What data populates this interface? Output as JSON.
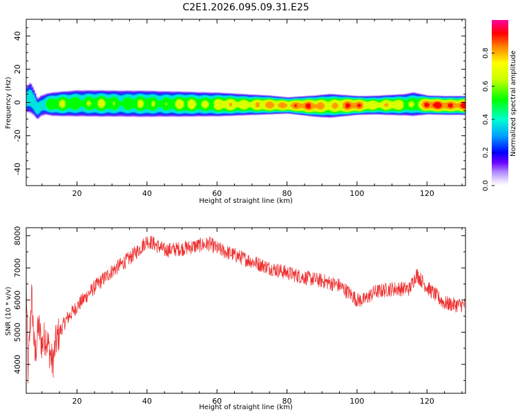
{
  "chart_data": [
    {
      "type": "heatmap",
      "title": "C2E1.2026.095.09.31.E25",
      "xlabel": "Height of straight line (km)",
      "ylabel": "Frequency (Hz)",
      "xlim": [
        5.5,
        131
      ],
      "ylim": [
        -50,
        50
      ],
      "xticks": [
        20,
        40,
        60,
        80,
        100,
        120
      ],
      "yticks": [
        -40,
        -20,
        0,
        20,
        40
      ],
      "ridge": {
        "x": [
          5.5,
          6.5,
          7.5,
          8.5,
          9.5,
          11,
          13,
          20,
          40,
          60,
          75,
          80,
          88,
          92,
          100,
          105,
          113,
          116,
          120,
          125,
          131
        ],
        "freq": [
          2,
          3,
          0,
          -4,
          -2,
          -1,
          -1,
          -0.5,
          -0.8,
          -1.2,
          -1.5,
          -1.8,
          -2.2,
          -2.0,
          -1.8,
          -1.6,
          -1.4,
          -1.0,
          -1.5,
          -1.8,
          -1.8
        ],
        "halfwidth": [
          5,
          6,
          5,
          4,
          4,
          4,
          4.5,
          5,
          5,
          4.5,
          3.5,
          3,
          4,
          4.5,
          3.5,
          3.5,
          4,
          4.5,
          3.5,
          3.5,
          3.5
        ],
        "amplitude": [
          0.45,
          0.55,
          0.5,
          0.45,
          0.5,
          0.55,
          0.6,
          0.62,
          0.6,
          0.7,
          0.8,
          0.88,
          0.85,
          0.8,
          0.88,
          0.75,
          0.7,
          0.65,
          0.9,
          0.92,
          0.92
        ]
      },
      "colorbar": {
        "label": "Normalized spectral amplitude",
        "range": [
          0,
          1
        ],
        "ticks": [
          "0.0",
          "0.2",
          "0.4",
          "0.6",
          "0.8"
        ],
        "tick_values": [
          0,
          0.2,
          0.4,
          0.6,
          0.8
        ]
      }
    },
    {
      "type": "line",
      "title": "",
      "xlabel": "Height of straight line (km)",
      "ylabel": "SNR (10 * v/v)",
      "xlim": [
        5.5,
        131
      ],
      "ylim": [
        3100,
        8250
      ],
      "xticks": [
        20,
        40,
        60,
        80,
        100,
        120
      ],
      "yticks": [
        4000,
        5000,
        6000,
        7000,
        8000
      ],
      "series": [
        {
          "name": "SNR",
          "color": "#ee3030",
          "x": [
            5.5,
            6,
            7,
            8,
            9,
            10,
            11,
            12,
            13,
            14,
            15,
            17,
            20,
            25,
            30,
            35,
            38,
            40,
            42,
            45,
            50,
            55,
            58,
            60,
            65,
            70,
            75,
            80,
            85,
            90,
            95,
            98,
            100,
            102,
            105,
            110,
            115,
            117,
            120,
            125,
            128,
            131
          ],
          "y": [
            6500,
            3700,
            6200,
            4200,
            5200,
            4600,
            4900,
            4500,
            4000,
            4700,
            5000,
            5400,
            5800,
            6400,
            6900,
            7300,
            7600,
            7850,
            7750,
            7550,
            7600,
            7700,
            7750,
            7600,
            7400,
            7200,
            7000,
            6850,
            6700,
            6600,
            6450,
            6200,
            6000,
            6000,
            6250,
            6350,
            6350,
            6800,
            6400,
            5900,
            5850,
            5850
          ],
          "noise": 230
        }
      ]
    }
  ]
}
